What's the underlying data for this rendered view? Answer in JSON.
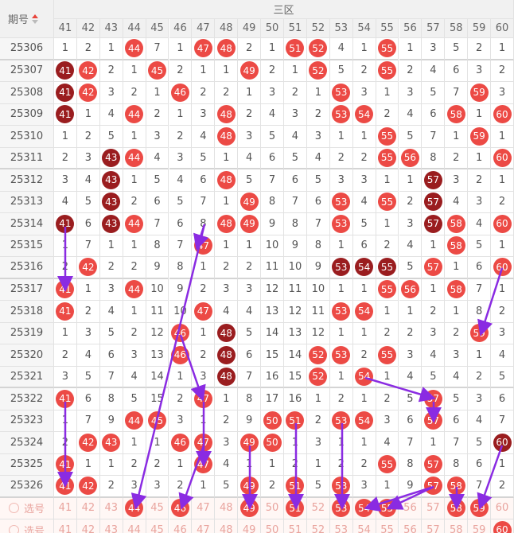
{
  "header": {
    "issue_label": "期号",
    "zone_label": "三区",
    "columns": [
      41,
      42,
      43,
      44,
      45,
      46,
      47,
      48,
      49,
      50,
      51,
      52,
      53,
      54,
      55,
      56,
      57,
      58,
      59,
      60
    ]
  },
  "rows": [
    {
      "issue": "25306",
      "cells": [
        1,
        2,
        1,
        {
          "value": 44,
          "ball": "red"
        },
        7,
        1,
        {
          "value": 47,
          "ball": "red"
        },
        {
          "value": 48,
          "ball": "red"
        },
        2,
        1,
        {
          "value": 51,
          "ball": "red"
        },
        {
          "value": 52,
          "ball": "red"
        },
        4,
        1,
        {
          "value": 55,
          "ball": "red"
        },
        1,
        3,
        5,
        2,
        1
      ]
    },
    {
      "issue": "25307",
      "cells": [
        {
          "value": 41,
          "ball": "dark"
        },
        {
          "value": 42,
          "ball": "red"
        },
        2,
        1,
        {
          "value": 45,
          "ball": "red"
        },
        2,
        1,
        1,
        {
          "value": 49,
          "ball": "red"
        },
        2,
        1,
        {
          "value": 52,
          "ball": "red"
        },
        5,
        2,
        {
          "value": 55,
          "ball": "red"
        },
        2,
        4,
        6,
        3,
        2
      ]
    },
    {
      "issue": "25308",
      "cells": [
        {
          "value": 41,
          "ball": "dark"
        },
        {
          "value": 42,
          "ball": "red"
        },
        3,
        2,
        1,
        {
          "value": 46,
          "ball": "red"
        },
        2,
        2,
        1,
        3,
        2,
        1,
        {
          "value": 53,
          "ball": "red"
        },
        3,
        1,
        3,
        5,
        7,
        {
          "value": 59,
          "ball": "red"
        },
        3
      ]
    },
    {
      "issue": "25309",
      "cells": [
        {
          "value": 41,
          "ball": "dark"
        },
        1,
        4,
        {
          "value": 44,
          "ball": "red"
        },
        2,
        1,
        3,
        {
          "value": 48,
          "ball": "red"
        },
        2,
        4,
        3,
        2,
        {
          "value": 53,
          "ball": "red"
        },
        {
          "value": 54,
          "ball": "red"
        },
        2,
        4,
        6,
        {
          "value": 58,
          "ball": "red"
        },
        1,
        {
          "value": 60,
          "ball": "red"
        }
      ]
    },
    {
      "issue": "25310",
      "cells": [
        1,
        2,
        5,
        1,
        3,
        2,
        4,
        {
          "value": 48,
          "ball": "red"
        },
        3,
        5,
        4,
        3,
        1,
        1,
        {
          "value": 55,
          "ball": "red"
        },
        5,
        7,
        1,
        {
          "value": 59,
          "ball": "red"
        },
        1
      ]
    },
    {
      "issue": "25311",
      "cells": [
        2,
        3,
        {
          "value": 43,
          "ball": "dark"
        },
        {
          "value": 44,
          "ball": "red"
        },
        4,
        3,
        5,
        1,
        4,
        6,
        5,
        4,
        2,
        2,
        {
          "value": 55,
          "ball": "red"
        },
        {
          "value": 56,
          "ball": "red"
        },
        8,
        2,
        1,
        {
          "value": 60,
          "ball": "red"
        }
      ]
    },
    {
      "issue": "25312",
      "cells": [
        3,
        4,
        {
          "value": 43,
          "ball": "dark"
        },
        1,
        5,
        4,
        6,
        {
          "value": 48,
          "ball": "red"
        },
        5,
        7,
        6,
        5,
        3,
        3,
        1,
        1,
        {
          "value": 57,
          "ball": "dark"
        },
        3,
        2,
        1
      ]
    },
    {
      "issue": "25313",
      "cells": [
        4,
        5,
        {
          "value": 43,
          "ball": "dark"
        },
        2,
        6,
        5,
        7,
        1,
        {
          "value": 49,
          "ball": "red"
        },
        8,
        7,
        6,
        {
          "value": 53,
          "ball": "red"
        },
        4,
        {
          "value": 55,
          "ball": "red"
        },
        2,
        {
          "value": 57,
          "ball": "dark"
        },
        4,
        3,
        2
      ]
    },
    {
      "issue": "25314",
      "cells": [
        {
          "value": 41,
          "ball": "dark"
        },
        6,
        {
          "value": 43,
          "ball": "dark"
        },
        {
          "value": 44,
          "ball": "red"
        },
        7,
        6,
        8,
        {
          "value": 48,
          "ball": "red"
        },
        {
          "value": 49,
          "ball": "red"
        },
        9,
        8,
        7,
        {
          "value": 53,
          "ball": "red"
        },
        5,
        1,
        3,
        {
          "value": 57,
          "ball": "dark"
        },
        {
          "value": 58,
          "ball": "red"
        },
        4,
        {
          "value": 60,
          "ball": "red"
        }
      ]
    },
    {
      "issue": "25315",
      "cells": [
        1,
        7,
        1,
        1,
        8,
        7,
        {
          "value": 47,
          "ball": "red"
        },
        1,
        1,
        10,
        9,
        8,
        1,
        6,
        2,
        4,
        1,
        {
          "value": 58,
          "ball": "red"
        },
        5,
        1
      ]
    },
    {
      "issue": "25316",
      "cells": [
        2,
        {
          "value": 42,
          "ball": "red"
        },
        2,
        2,
        9,
        8,
        1,
        2,
        2,
        11,
        10,
        9,
        {
          "value": 53,
          "ball": "dark"
        },
        {
          "value": 54,
          "ball": "dark"
        },
        {
          "value": 55,
          "ball": "dark"
        },
        5,
        {
          "value": 57,
          "ball": "red"
        },
        1,
        6,
        {
          "value": 60,
          "ball": "red"
        }
      ]
    },
    {
      "issue": "25317",
      "cells": [
        {
          "value": 41,
          "ball": "red"
        },
        1,
        3,
        {
          "value": 44,
          "ball": "red"
        },
        10,
        9,
        2,
        3,
        3,
        12,
        11,
        10,
        1,
        1,
        {
          "value": 55,
          "ball": "red"
        },
        {
          "value": 56,
          "ball": "red"
        },
        1,
        {
          "value": 58,
          "ball": "red"
        },
        7,
        1
      ]
    },
    {
      "issue": "25318",
      "cells": [
        {
          "value": 41,
          "ball": "red"
        },
        2,
        4,
        1,
        11,
        10,
        {
          "value": 47,
          "ball": "red"
        },
        4,
        4,
        13,
        12,
        11,
        {
          "value": 53,
          "ball": "red"
        },
        {
          "value": 54,
          "ball": "red"
        },
        1,
        1,
        2,
        1,
        8,
        2
      ]
    },
    {
      "issue": "25319",
      "cells": [
        1,
        3,
        5,
        2,
        12,
        {
          "value": 46,
          "ball": "red"
        },
        1,
        {
          "value": 48,
          "ball": "dark"
        },
        5,
        14,
        13,
        12,
        1,
        1,
        2,
        2,
        3,
        2,
        {
          "value": 59,
          "ball": "red"
        },
        3
      ]
    },
    {
      "issue": "25320",
      "cells": [
        2,
        4,
        6,
        3,
        13,
        {
          "value": 46,
          "ball": "red"
        },
        2,
        {
          "value": 48,
          "ball": "dark"
        },
        6,
        15,
        14,
        {
          "value": 52,
          "ball": "red"
        },
        {
          "value": 53,
          "ball": "red"
        },
        2,
        {
          "value": 55,
          "ball": "red"
        },
        3,
        4,
        3,
        1,
        4
      ]
    },
    {
      "issue": "25321",
      "cells": [
        3,
        5,
        7,
        4,
        14,
        1,
        3,
        {
          "value": 48,
          "ball": "dark"
        },
        7,
        16,
        15,
        {
          "value": 52,
          "ball": "red"
        },
        1,
        {
          "value": 54,
          "ball": "red"
        },
        1,
        4,
        5,
        4,
        2,
        5
      ]
    },
    {
      "issue": "25322",
      "cells": [
        {
          "value": 41,
          "ball": "red"
        },
        6,
        8,
        5,
        15,
        2,
        {
          "value": 47,
          "ball": "red"
        },
        1,
        8,
        17,
        16,
        1,
        2,
        1,
        2,
        5,
        {
          "value": 57,
          "ball": "red"
        },
        5,
        3,
        6
      ]
    },
    {
      "issue": "25323",
      "cells": [
        1,
        7,
        9,
        {
          "value": 44,
          "ball": "red"
        },
        {
          "value": 45,
          "ball": "red"
        },
        3,
        1,
        2,
        9,
        {
          "value": 50,
          "ball": "red"
        },
        {
          "value": 51,
          "ball": "red"
        },
        2,
        {
          "value": 53,
          "ball": "red"
        },
        {
          "value": 54,
          "ball": "red"
        },
        3,
        6,
        {
          "value": 57,
          "ball": "red"
        },
        6,
        4,
        7
      ]
    },
    {
      "issue": "25324",
      "cells": [
        2,
        {
          "value": 42,
          "ball": "red"
        },
        {
          "value": 43,
          "ball": "red"
        },
        1,
        1,
        {
          "value": 46,
          "ball": "red"
        },
        {
          "value": 47,
          "ball": "red"
        },
        3,
        {
          "value": 49,
          "ball": "red"
        },
        {
          "value": 50,
          "ball": "red"
        },
        1,
        3,
        1,
        1,
        4,
        7,
        1,
        7,
        5,
        {
          "value": 60,
          "ball": "dark"
        }
      ]
    },
    {
      "issue": "25325",
      "cells": [
        {
          "value": 41,
          "ball": "red"
        },
        1,
        1,
        2,
        2,
        1,
        {
          "value": 47,
          "ball": "red"
        },
        4,
        1,
        1,
        2,
        1,
        2,
        2,
        {
          "value": 55,
          "ball": "red"
        },
        8,
        {
          "value": 57,
          "ball": "red"
        },
        8,
        6,
        1
      ]
    },
    {
      "issue": "25326",
      "cells": [
        {
          "value": 41,
          "ball": "red"
        },
        {
          "value": 42,
          "ball": "red"
        },
        2,
        3,
        3,
        2,
        1,
        5,
        {
          "value": 49,
          "ball": "red"
        },
        2,
        {
          "value": 51,
          "ball": "red"
        },
        5,
        {
          "value": 53,
          "ball": "red"
        },
        3,
        1,
        9,
        {
          "value": 57,
          "ball": "red"
        },
        {
          "value": 58,
          "ball": "red"
        },
        7,
        2
      ]
    }
  ],
  "picker_rows": [
    {
      "label": "选号",
      "numbers": [
        41,
        42,
        43,
        44,
        45,
        46,
        47,
        48,
        49,
        50,
        51,
        52,
        53,
        54,
        55,
        56,
        57,
        58,
        59,
        60
      ],
      "selected": [
        44,
        46,
        49,
        51,
        53,
        54,
        55,
        58,
        59
      ]
    },
    {
      "label": "选号",
      "numbers": [
        41,
        42,
        43,
        44,
        45,
        46,
        47,
        48,
        49,
        50,
        51,
        52,
        53,
        54,
        55,
        56,
        57,
        58,
        59,
        60
      ],
      "selected": [
        60
      ]
    }
  ]
}
